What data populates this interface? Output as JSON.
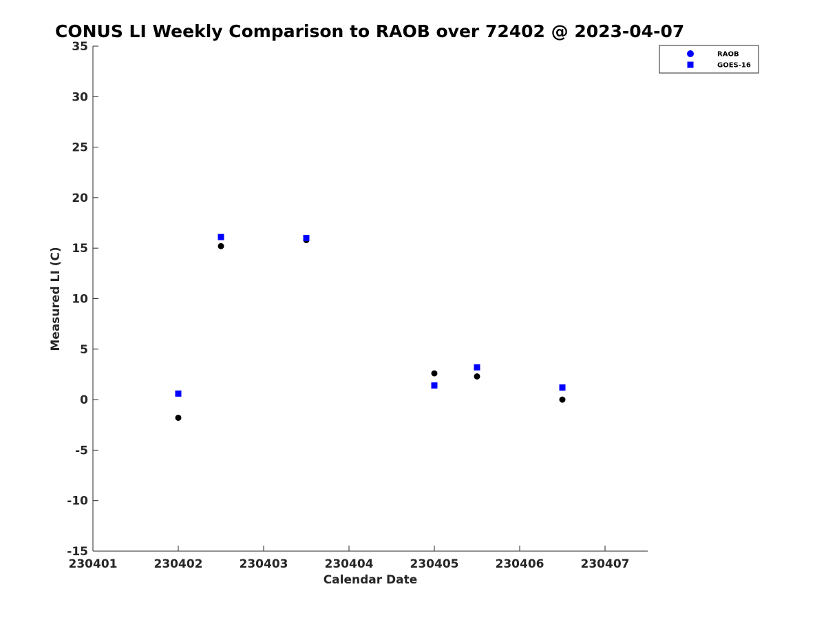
{
  "chart_data": {
    "type": "scatter",
    "title": "CONUS LI Weekly Comparison to RAOB over 72402 @ 2023-04-07",
    "xlabel": "Calendar Date",
    "ylabel": "Measured LI (C)",
    "xlim": [
      230401,
      230407.5
    ],
    "ylim": [
      -15,
      35
    ],
    "xticks": [
      230401,
      230402,
      230403,
      230404,
      230405,
      230406,
      230407
    ],
    "xtick_labels": [
      "230401",
      "230402",
      "230403",
      "230404",
      "230405",
      "230406",
      "230407"
    ],
    "yticks": [
      -15,
      -10,
      -5,
      0,
      5,
      10,
      15,
      20,
      25,
      30,
      35
    ],
    "ytick_labels": [
      "-15",
      "-10",
      "-5",
      "0",
      "5",
      "10",
      "15",
      "20",
      "25",
      "30",
      "35"
    ],
    "grid": false,
    "legend": "top-right-outside",
    "series": [
      {
        "name": "RAOB",
        "marker": "circle",
        "legend_color": "#0000ff",
        "color": "#000000",
        "x": [
          230402,
          230402.5,
          230403.5,
          230405,
          230405.5,
          230406.5
        ],
        "y": [
          -1.8,
          15.2,
          15.8,
          2.6,
          2.3,
          0.0
        ]
      },
      {
        "name": "GOES-16",
        "marker": "square",
        "color": "#0000ff",
        "x": [
          230402,
          230402.5,
          230403.5,
          230405,
          230405.5,
          230406.5
        ],
        "y": [
          0.6,
          16.1,
          16.0,
          1.4,
          3.2,
          1.2
        ]
      }
    ]
  }
}
